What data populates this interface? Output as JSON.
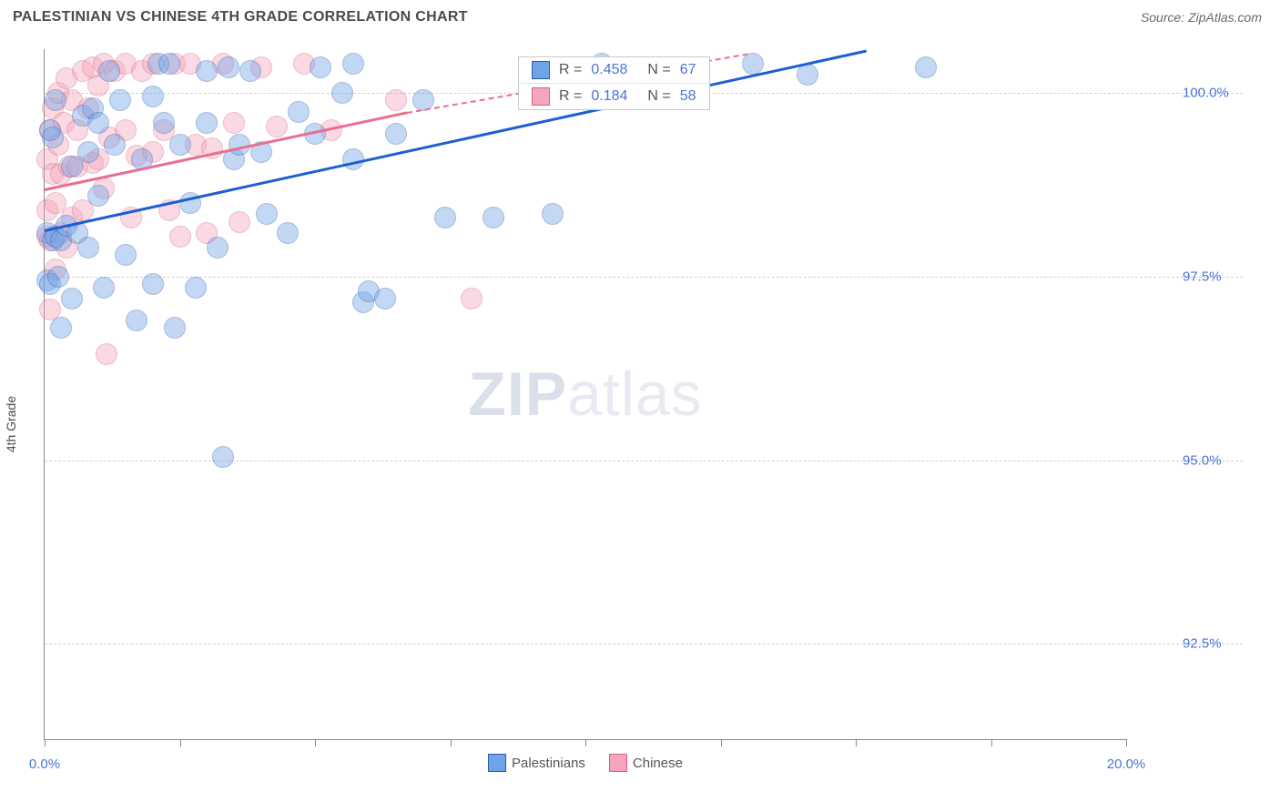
{
  "title": "PALESTINIAN VS CHINESE 4TH GRADE CORRELATION CHART",
  "source": "Source: ZipAtlas.com",
  "ylabel": "4th Grade",
  "watermark_bold": "ZIP",
  "watermark_rest": "atlas",
  "chart": {
    "type": "scatter",
    "xlim": [
      0.0,
      20.0
    ],
    "ylim": [
      91.2,
      100.6
    ],
    "x_ticks": [
      0.0,
      2.5,
      5.0,
      7.5,
      10.0,
      12.5,
      15.0,
      17.5,
      20.0
    ],
    "x_tick_labels": {
      "0": "0.0%",
      "20": "20.0%"
    },
    "y_ticks": [
      92.5,
      95.0,
      97.5,
      100.0
    ],
    "y_tick_labels": [
      "92.5%",
      "95.0%",
      "97.5%",
      "100.0%"
    ],
    "grid_color": "#cfcfcf",
    "axis_color": "#888888",
    "background_color": "#ffffff",
    "tick_label_color": "#4a74d6",
    "label_fontsize": 14,
    "tick_fontsize": 15,
    "marker_radius": 11,
    "marker_opacity": 0.42,
    "series": {
      "palestinians": {
        "label": "Palestinians",
        "fill": "#6fa3e8",
        "stroke": "#2e5aa8",
        "line_color": "#1d5fd1",
        "R": "0.458",
        "N": "67",
        "trend": {
          "x1": 0.0,
          "y1": 98.15,
          "x2": 15.2,
          "y2": 100.6
        },
        "points": [
          [
            0.05,
            97.45
          ],
          [
            0.05,
            98.1
          ],
          [
            0.1,
            97.4
          ],
          [
            0.1,
            99.5
          ],
          [
            0.15,
            98.0
          ],
          [
            0.15,
            99.4
          ],
          [
            0.2,
            98.05
          ],
          [
            0.2,
            99.9
          ],
          [
            0.25,
            97.5
          ],
          [
            0.3,
            96.8
          ],
          [
            0.3,
            98.0
          ],
          [
            0.4,
            98.2
          ],
          [
            0.5,
            99.0
          ],
          [
            0.5,
            97.2
          ],
          [
            0.6,
            98.1
          ],
          [
            0.7,
            99.7
          ],
          [
            0.8,
            97.9
          ],
          [
            0.8,
            99.2
          ],
          [
            0.9,
            99.8
          ],
          [
            1.0,
            99.6
          ],
          [
            1.0,
            98.6
          ],
          [
            1.1,
            97.35
          ],
          [
            1.2,
            100.3
          ],
          [
            1.3,
            99.3
          ],
          [
            1.4,
            99.9
          ],
          [
            1.5,
            97.8
          ],
          [
            1.7,
            96.9
          ],
          [
            1.8,
            99.1
          ],
          [
            2.0,
            99.95
          ],
          [
            2.0,
            97.4
          ],
          [
            2.1,
            100.4
          ],
          [
            2.2,
            99.6
          ],
          [
            2.3,
            100.4
          ],
          [
            2.4,
            96.8
          ],
          [
            2.5,
            99.3
          ],
          [
            2.7,
            98.5
          ],
          [
            2.8,
            97.35
          ],
          [
            3.0,
            99.6
          ],
          [
            3.0,
            100.3
          ],
          [
            3.2,
            97.9
          ],
          [
            3.3,
            95.05
          ],
          [
            3.4,
            100.35
          ],
          [
            3.5,
            99.1
          ],
          [
            3.6,
            99.3
          ],
          [
            3.8,
            100.3
          ],
          [
            4.0,
            99.2
          ],
          [
            4.1,
            98.35
          ],
          [
            4.5,
            98.1
          ],
          [
            4.7,
            99.75
          ],
          [
            5.0,
            99.45
          ],
          [
            5.1,
            100.35
          ],
          [
            5.5,
            100.0
          ],
          [
            5.7,
            99.1
          ],
          [
            5.9,
            97.15
          ],
          [
            5.7,
            100.4
          ],
          [
            6.0,
            97.3
          ],
          [
            6.3,
            97.2
          ],
          [
            6.5,
            99.45
          ],
          [
            7.0,
            99.9
          ],
          [
            7.4,
            98.3
          ],
          [
            8.3,
            98.3
          ],
          [
            9.4,
            98.35
          ],
          [
            10.3,
            100.4
          ],
          [
            11.5,
            100.35
          ],
          [
            13.1,
            100.4
          ],
          [
            14.1,
            100.25
          ],
          [
            16.3,
            100.35
          ]
        ]
      },
      "chinese": {
        "label": "Chinese",
        "fill": "#f4a6bc",
        "stroke": "#d6607f",
        "line_color": "#e86f93",
        "R": "0.184",
        "N": "58",
        "trend": {
          "x1": 0.0,
          "y1": 98.7,
          "x2": 6.7,
          "y2": 99.75
        },
        "trend_dash": {
          "x1": 6.7,
          "y1": 99.75,
          "x2": 13.0,
          "y2": 100.55
        },
        "points": [
          [
            0.05,
            98.05
          ],
          [
            0.05,
            98.4
          ],
          [
            0.05,
            99.1
          ],
          [
            0.1,
            97.05
          ],
          [
            0.1,
            98.0
          ],
          [
            0.1,
            99.5
          ],
          [
            0.15,
            98.9
          ],
          [
            0.15,
            99.8
          ],
          [
            0.2,
            97.6
          ],
          [
            0.2,
            98.5
          ],
          [
            0.25,
            99.3
          ],
          [
            0.25,
            100.0
          ],
          [
            0.3,
            98.1
          ],
          [
            0.3,
            98.9
          ],
          [
            0.35,
            99.6
          ],
          [
            0.4,
            97.9
          ],
          [
            0.4,
            100.2
          ],
          [
            0.45,
            99.0
          ],
          [
            0.5,
            98.3
          ],
          [
            0.5,
            99.9
          ],
          [
            0.6,
            99.0
          ],
          [
            0.6,
            99.5
          ],
          [
            0.7,
            98.4
          ],
          [
            0.7,
            100.3
          ],
          [
            0.8,
            99.8
          ],
          [
            0.9,
            100.35
          ],
          [
            0.9,
            99.05
          ],
          [
            1.0,
            99.1
          ],
          [
            1.0,
            100.1
          ],
          [
            1.1,
            98.7
          ],
          [
            1.15,
            96.45
          ],
          [
            1.1,
            100.4
          ],
          [
            1.2,
            99.4
          ],
          [
            1.3,
            100.3
          ],
          [
            1.5,
            100.4
          ],
          [
            1.5,
            99.5
          ],
          [
            1.6,
            98.3
          ],
          [
            1.7,
            99.15
          ],
          [
            1.8,
            100.3
          ],
          [
            2.0,
            100.4
          ],
          [
            2.0,
            99.2
          ],
          [
            2.2,
            99.5
          ],
          [
            2.3,
            98.4
          ],
          [
            2.4,
            100.4
          ],
          [
            2.5,
            98.05
          ],
          [
            2.7,
            100.4
          ],
          [
            2.8,
            99.3
          ],
          [
            3.0,
            98.1
          ],
          [
            3.1,
            99.25
          ],
          [
            3.3,
            100.4
          ],
          [
            3.5,
            99.6
          ],
          [
            3.6,
            98.25
          ],
          [
            4.0,
            100.35
          ],
          [
            4.3,
            99.55
          ],
          [
            4.8,
            100.4
          ],
          [
            5.3,
            99.5
          ],
          [
            6.5,
            99.9
          ],
          [
            7.9,
            97.2
          ]
        ]
      }
    }
  }
}
